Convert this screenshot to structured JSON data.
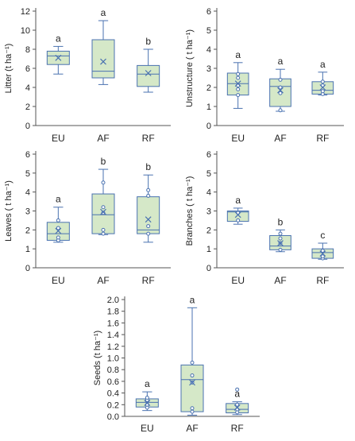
{
  "colors": {
    "box_fill": "#d5e8c8",
    "box_stroke": "#4a72b0",
    "axis": "#555555",
    "text": "#222222"
  },
  "chart_data": [
    {
      "id": "litter",
      "type": "box",
      "ylabel": "Litter (t ha⁻¹)",
      "ylim": [
        0,
        12
      ],
      "yticks": [
        0,
        2,
        4,
        6,
        8,
        10,
        12
      ],
      "categories": [
        "EU",
        "AF",
        "RF"
      ],
      "boxes": [
        {
          "category": "EU",
          "min": 5.4,
          "q1": 6.4,
          "median": 7.3,
          "q3": 7.8,
          "max": 8.3,
          "mean": 7.1,
          "points": [],
          "letter": "a"
        },
        {
          "category": "AF",
          "min": 4.3,
          "q1": 5.0,
          "median": 5.7,
          "q3": 9.0,
          "max": 11.0,
          "mean": 6.7,
          "points": [],
          "letter": "a"
        },
        {
          "category": "RF",
          "min": 3.5,
          "q1": 4.1,
          "median": 5.4,
          "q3": 6.3,
          "max": 8.0,
          "mean": 5.5,
          "points": [],
          "letter": "b"
        }
      ]
    },
    {
      "id": "unstructure",
      "type": "box",
      "ylabel": "Unstructure ( t ha⁻¹)",
      "ylim": [
        0,
        6
      ],
      "yticks": [
        0,
        1,
        2,
        3,
        4,
        5,
        6
      ],
      "categories": [
        "EU",
        "AF",
        "RF"
      ],
      "boxes": [
        {
          "category": "EU",
          "min": 0.9,
          "q1": 1.6,
          "median": 2.2,
          "q3": 2.75,
          "max": 3.3,
          "mean": 2.2,
          "points": [
            1.6,
            1.9,
            2.1,
            2.5,
            2.7
          ],
          "letter": "a"
        },
        {
          "category": "AF",
          "min": 0.75,
          "q1": 1.0,
          "median": 2.05,
          "q3": 2.45,
          "max": 2.95,
          "mean": 1.85,
          "points": [
            0.8,
            1.7,
            2.0,
            2.4
          ],
          "letter": "a"
        },
        {
          "category": "RF",
          "min": 1.6,
          "q1": 1.65,
          "median": 1.85,
          "q3": 2.3,
          "max": 2.8,
          "mean": 2.0,
          "points": [
            1.65,
            1.8,
            2.1,
            2.3
          ],
          "letter": "a"
        }
      ]
    },
    {
      "id": "leaves",
      "type": "box",
      "ylabel": "Leaves ( t ha⁻¹)",
      "ylim": [
        0,
        6
      ],
      "yticks": [
        0,
        1,
        2,
        3,
        4,
        5,
        6
      ],
      "categories": [
        "EU",
        "AF",
        "RF"
      ],
      "boxes": [
        {
          "category": "EU",
          "min": 1.35,
          "q1": 1.45,
          "median": 1.8,
          "q3": 2.4,
          "max": 3.2,
          "mean": 1.95,
          "points": [
            1.45,
            1.6,
            2.1,
            2.5
          ],
          "letter": "a"
        },
        {
          "category": "AF",
          "min": 1.75,
          "q1": 1.8,
          "median": 2.8,
          "q3": 3.9,
          "max": 5.2,
          "mean": 2.95,
          "points": [
            1.8,
            2.0,
            2.9,
            3.2,
            4.5
          ],
          "letter": "b"
        },
        {
          "category": "RF",
          "min": 1.35,
          "q1": 1.8,
          "median": 2.0,
          "q3": 3.75,
          "max": 4.9,
          "mean": 2.55,
          "points": [
            1.8,
            2.2,
            3.8,
            4.1
          ],
          "letter": "b"
        }
      ]
    },
    {
      "id": "branches",
      "type": "box",
      "ylabel": "Branches ( t ha⁻¹)",
      "ylim": [
        0,
        6
      ],
      "yticks": [
        0,
        1,
        2,
        3,
        4,
        5,
        6
      ],
      "categories": [
        "EU",
        "AF",
        "RF"
      ],
      "boxes": [
        {
          "category": "EU",
          "min": 2.3,
          "q1": 2.45,
          "median": 2.95,
          "q3": 3.0,
          "max": 3.15,
          "mean": 2.8,
          "points": [
            2.5,
            2.9
          ],
          "letter": "a"
        },
        {
          "category": "AF",
          "min": 0.85,
          "q1": 0.95,
          "median": 1.15,
          "q3": 1.7,
          "max": 2.0,
          "mean": 1.3,
          "points": [
            0.95,
            1.3,
            1.55,
            1.8
          ],
          "letter": "b"
        },
        {
          "category": "RF",
          "min": 0.45,
          "q1": 0.5,
          "median": 0.8,
          "q3": 1.0,
          "max": 1.3,
          "mean": 0.75,
          "points": [
            0.5,
            0.6,
            0.9
          ],
          "letter": "c"
        }
      ]
    },
    {
      "id": "seeds",
      "type": "box",
      "ylabel": "Seeds (t ha⁻¹)",
      "ylim": [
        0,
        2
      ],
      "yticks": [
        0,
        0.2,
        0.4,
        0.6,
        0.8,
        1.0,
        1.2,
        1.4,
        1.6,
        1.8,
        2.0
      ],
      "categories": [
        "EU",
        "AF",
        "RF"
      ],
      "boxes": [
        {
          "category": "EU",
          "min": 0.1,
          "q1": 0.16,
          "median": 0.24,
          "q3": 0.3,
          "max": 0.42,
          "mean": 0.23,
          "points": [
            0.15,
            0.2,
            0.28,
            0.32
          ],
          "letter": "a"
        },
        {
          "category": "AF",
          "min": 0.02,
          "q1": 0.08,
          "median": 0.63,
          "q3": 0.88,
          "max": 1.86,
          "mean": 0.58,
          "points": [
            0.08,
            0.14,
            0.58,
            0.7,
            0.92
          ],
          "letter": "a"
        },
        {
          "category": "RF",
          "min": 0.03,
          "q1": 0.06,
          "median": 0.12,
          "q3": 0.22,
          "max": 0.25,
          "mean": 0.15,
          "points": [
            0.07,
            0.12,
            0.2,
            0.46
          ],
          "letter": "a"
        }
      ]
    }
  ]
}
